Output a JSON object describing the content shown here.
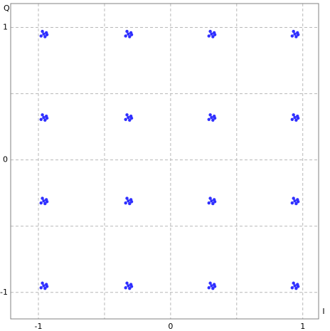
{
  "chart_data": {
    "type": "scatter",
    "xlabel": "I",
    "ylabel": "Q",
    "xlim": [
      -1.21,
      1.12
    ],
    "ylim": [
      -1.2,
      1.18
    ],
    "xticks": [
      -1,
      0,
      1
    ],
    "yticks": [
      -1,
      0,
      1
    ],
    "xgrid": [
      -1,
      -0.5,
      0,
      0.5,
      1
    ],
    "ygrid": [
      -1,
      -0.5,
      0,
      0.5,
      1
    ],
    "grid": true,
    "series": [
      {
        "color": "#2f2fff",
        "x": [
          -0.96,
          -0.94,
          -0.98,
          -0.95,
          -0.97,
          -0.935,
          -0.32,
          -0.3,
          -0.34,
          -0.31,
          -0.33,
          -0.295,
          0.31,
          0.33,
          0.29,
          0.32,
          0.3,
          0.335,
          0.94,
          0.96,
          0.92,
          0.95,
          0.93,
          0.965,
          -0.96,
          -0.94,
          -0.98,
          -0.95,
          -0.97,
          -0.935,
          -0.32,
          -0.3,
          -0.34,
          -0.31,
          -0.33,
          -0.295,
          0.31,
          0.33,
          0.29,
          0.32,
          0.3,
          0.335,
          0.94,
          0.96,
          0.92,
          0.95,
          0.93,
          0.965,
          -0.96,
          -0.94,
          -0.98,
          -0.95,
          -0.97,
          -0.935,
          -0.32,
          -0.3,
          -0.34,
          -0.31,
          -0.33,
          -0.295,
          0.31,
          0.33,
          0.29,
          0.32,
          0.3,
          0.335,
          0.94,
          0.96,
          0.92,
          0.95,
          0.93,
          0.965,
          -0.96,
          -0.94,
          -0.98,
          -0.95,
          -0.97,
          -0.935,
          -0.32,
          -0.3,
          -0.34,
          -0.31,
          -0.33,
          -0.295,
          0.31,
          0.33,
          0.29,
          0.32,
          0.3,
          0.335,
          0.94,
          0.96,
          0.92,
          0.95,
          0.93,
          0.965
        ],
        "y": [
          0.95,
          0.96,
          0.935,
          0.93,
          0.97,
          0.945,
          0.95,
          0.96,
          0.935,
          0.93,
          0.97,
          0.945,
          0.95,
          0.96,
          0.935,
          0.93,
          0.97,
          0.945,
          0.95,
          0.96,
          0.935,
          0.93,
          0.97,
          0.945,
          0.32,
          0.33,
          0.305,
          0.3,
          0.34,
          0.315,
          0.32,
          0.33,
          0.305,
          0.3,
          0.34,
          0.315,
          0.32,
          0.33,
          0.305,
          0.3,
          0.34,
          0.315,
          0.32,
          0.33,
          0.305,
          0.3,
          0.34,
          0.315,
          -0.31,
          -0.3,
          -0.325,
          -0.33,
          -0.29,
          -0.315,
          -0.31,
          -0.3,
          -0.325,
          -0.33,
          -0.29,
          -0.315,
          -0.31,
          -0.3,
          -0.325,
          -0.33,
          -0.29,
          -0.315,
          -0.31,
          -0.3,
          -0.325,
          -0.33,
          -0.29,
          -0.315,
          -0.95,
          -0.94,
          -0.965,
          -0.97,
          -0.93,
          -0.955,
          -0.95,
          -0.94,
          -0.965,
          -0.97,
          -0.93,
          -0.955,
          -0.95,
          -0.94,
          -0.965,
          -0.97,
          -0.93,
          -0.955,
          -0.95,
          -0.94,
          -0.965,
          -0.97,
          -0.93,
          -0.955
        ]
      }
    ]
  }
}
